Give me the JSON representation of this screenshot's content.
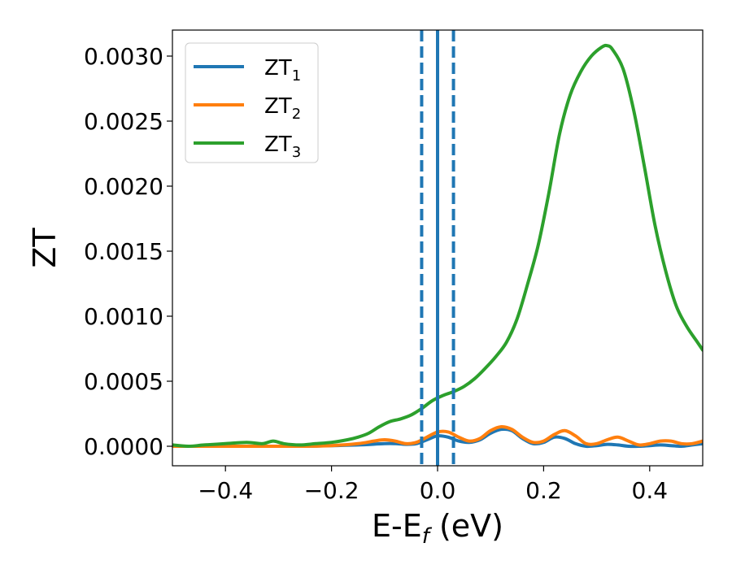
{
  "chart_data": {
    "type": "line",
    "xlabel": "E-E",
    "xlabel_sub": "f",
    "xlabel_unit": " (eV)",
    "ylabel": "ZT",
    "xlim": [
      -0.5,
      0.5
    ],
    "ylim": [
      -0.00015,
      0.0032
    ],
    "x_ticks": [
      -0.4,
      -0.2,
      0.0,
      0.2,
      0.4
    ],
    "x_tick_labels": [
      "−0.4",
      "−0.2",
      "0.0",
      "0.2",
      "0.4"
    ],
    "y_ticks": [
      0.0,
      0.0005,
      0.001,
      0.0015,
      0.002,
      0.0025,
      0.003
    ],
    "y_tick_labels": [
      "0.0000",
      "0.0005",
      "0.0010",
      "0.0015",
      "0.0020",
      "0.0025",
      "0.0030"
    ],
    "grid": false,
    "legend_position": "top-left",
    "series": [
      {
        "name": "ZT",
        "name_sub": "1",
        "color": "#1f77b4",
        "x": [
          -0.5,
          -0.45,
          -0.4,
          -0.35,
          -0.3,
          -0.25,
          -0.2,
          -0.15,
          -0.1,
          -0.08,
          -0.06,
          -0.04,
          -0.02,
          0.0,
          0.02,
          0.04,
          0.06,
          0.08,
          0.1,
          0.12,
          0.14,
          0.16,
          0.18,
          0.2,
          0.22,
          0.24,
          0.26,
          0.28,
          0.3,
          0.32,
          0.34,
          0.36,
          0.38,
          0.4,
          0.42,
          0.44,
          0.46,
          0.48,
          0.5
        ],
        "y": [
          0.0,
          0.0,
          0.0,
          0.0,
          0.0,
          0.0,
          5e-06,
          1e-05,
          2e-05,
          2e-05,
          1.5e-05,
          2e-05,
          5e-05,
          8e-05,
          7e-05,
          4e-05,
          3e-05,
          5e-05,
          0.0001,
          0.00013,
          0.00012,
          6e-05,
          2e-05,
          3e-05,
          7e-05,
          6e-05,
          2e-05,
          0.0,
          5e-06,
          1.5e-05,
          1e-05,
          0.0,
          0.0,
          5e-06,
          1e-05,
          5e-06,
          0.0,
          1e-05,
          2e-05
        ]
      },
      {
        "name": "ZT",
        "name_sub": "2",
        "color": "#ff7f0e",
        "x": [
          -0.5,
          -0.45,
          -0.4,
          -0.35,
          -0.3,
          -0.25,
          -0.2,
          -0.15,
          -0.12,
          -0.1,
          -0.08,
          -0.06,
          -0.04,
          -0.02,
          0.0,
          0.02,
          0.04,
          0.06,
          0.08,
          0.1,
          0.12,
          0.14,
          0.16,
          0.18,
          0.2,
          0.22,
          0.24,
          0.26,
          0.28,
          0.3,
          0.32,
          0.34,
          0.36,
          0.38,
          0.4,
          0.42,
          0.44,
          0.46,
          0.48,
          0.5
        ],
        "y": [
          0.0,
          0.0,
          0.0,
          0.0,
          0.0,
          0.0,
          5e-06,
          2e-05,
          4e-05,
          5e-05,
          4e-05,
          2e-05,
          3e-05,
          7e-05,
          0.00011,
          0.00011,
          7e-05,
          4e-05,
          6e-05,
          0.00012,
          0.00015,
          0.00013,
          7e-05,
          3e-05,
          4e-05,
          9e-05,
          0.00012,
          8e-05,
          2e-05,
          2e-05,
          5e-05,
          7e-05,
          4e-05,
          1e-05,
          2e-05,
          4e-05,
          4e-05,
          2e-05,
          2e-05,
          4e-05
        ]
      },
      {
        "name": "ZT",
        "name_sub": "3",
        "color": "#2ca02c",
        "x": [
          -0.5,
          -0.47,
          -0.44,
          -0.4,
          -0.36,
          -0.33,
          -0.31,
          -0.29,
          -0.26,
          -0.23,
          -0.2,
          -0.17,
          -0.15,
          -0.13,
          -0.11,
          -0.09,
          -0.07,
          -0.05,
          -0.03,
          -0.01,
          0.01,
          0.03,
          0.05,
          0.07,
          0.09,
          0.11,
          0.13,
          0.15,
          0.17,
          0.19,
          0.21,
          0.23,
          0.25,
          0.27,
          0.29,
          0.31,
          0.32,
          0.33,
          0.35,
          0.37,
          0.39,
          0.41,
          0.43,
          0.45,
          0.47,
          0.49,
          0.5
        ],
        "y": [
          1e-05,
          0.0,
          1e-05,
          2e-05,
          3e-05,
          2e-05,
          4e-05,
          2e-05,
          1e-05,
          2e-05,
          3e-05,
          5e-05,
          7e-05,
          0.0001,
          0.00015,
          0.00019,
          0.00021,
          0.00024,
          0.00029,
          0.00035,
          0.00039,
          0.00042,
          0.00046,
          0.00052,
          0.0006,
          0.00069,
          0.0008,
          0.00098,
          0.00125,
          0.00155,
          0.00195,
          0.0024,
          0.0027,
          0.00288,
          0.003,
          0.00307,
          0.00308,
          0.00305,
          0.0029,
          0.00258,
          0.00215,
          0.0017,
          0.00135,
          0.00108,
          0.00092,
          0.0008,
          0.00074
        ]
      }
    ],
    "vertical_lines": [
      {
        "x": -0.03,
        "color": "#1f77b4",
        "style": "dashed"
      },
      {
        "x": 0.0,
        "color": "#000000",
        "style": "dashed"
      },
      {
        "x": 0.0,
        "color": "#1f77b4",
        "style": "solid"
      },
      {
        "x": 0.03,
        "color": "#1f77b4",
        "style": "dashed"
      }
    ]
  }
}
